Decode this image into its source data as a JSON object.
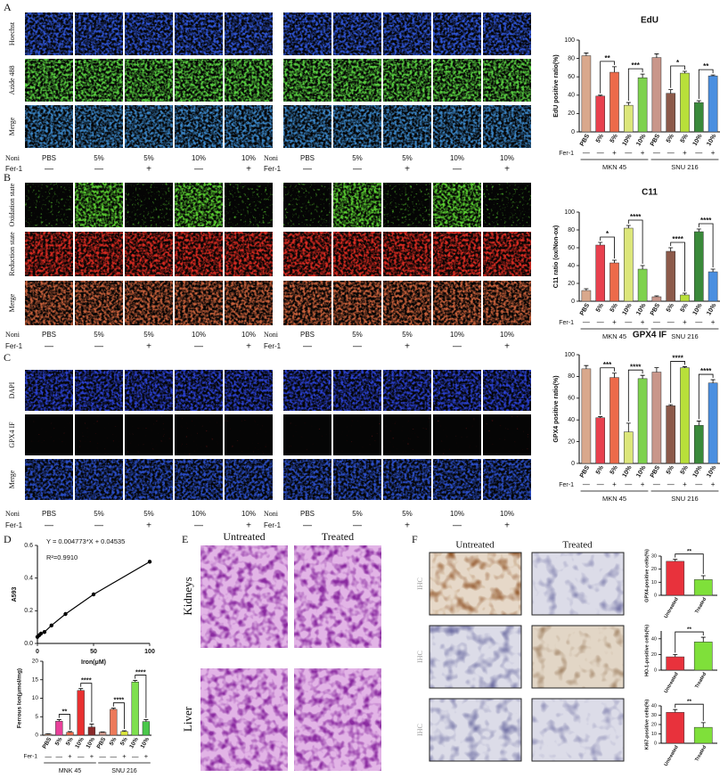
{
  "panel_letters": [
    "A",
    "B",
    "C",
    "D",
    "E",
    "F"
  ],
  "microscopy": [
    {
      "rows": [
        "Hoechst",
        "Azide 488",
        "Merge"
      ],
      "tints": [
        "#2f55d8",
        "#58d040",
        "#3a86c8"
      ],
      "conditions": [
        "Noni",
        "PBS",
        "5%",
        "5%",
        "10%",
        "10%"
      ],
      "fer1": [
        "Fer-1",
        "—",
        "—",
        "+",
        "—",
        "+"
      ]
    },
    {
      "rows": [
        "Oxidation state",
        "Reduction state",
        "Merge"
      ],
      "tints": [
        "#5ad030",
        "#d82a20",
        "#c8603a"
      ],
      "conditions": [
        "Noni",
        "PBS",
        "5%",
        "5%",
        "10%",
        "10%"
      ],
      "fer1": [
        "Fer-1",
        "—",
        "—",
        "+",
        "—",
        "+"
      ]
    },
    {
      "rows": [
        "DAPI",
        "GPX4 IF",
        "Merge"
      ],
      "tints": [
        "#2a40d0",
        "#7a1818",
        "#2a4ec8"
      ],
      "conditions": [
        "Noni",
        "PBS",
        "5%",
        "5%",
        "10%",
        "10%"
      ],
      "fer1": [
        "Fer-1",
        "—",
        "—",
        "+",
        "—",
        "+"
      ]
    }
  ],
  "histology": {
    "columns": [
      "Untreated",
      "Treated"
    ],
    "rows": [
      "Kidneys",
      "Liver"
    ]
  },
  "ihc": {
    "columns": [
      "Untreated",
      "Treated"
    ],
    "row_label": "IHC"
  },
  "chart_data": [
    {
      "type": "bar",
      "title": "EdU",
      "ylabel": "EdU positive ratio(%)",
      "categories": [
        "PBS",
        "5%",
        "5%",
        "10%",
        "10%",
        "PBS",
        "5%",
        "5%",
        "10%",
        "10%"
      ],
      "values": [
        83,
        39,
        65,
        29,
        59,
        81,
        42,
        64,
        32,
        61
      ],
      "errors": [
        3,
        1,
        6,
        3,
        4,
        4,
        4,
        2,
        2,
        1
      ],
      "colors": [
        "#d9a88c",
        "#e8404e",
        "#ec6a4a",
        "#dce67a",
        "#7ed24e",
        "#c9968a",
        "#8c5a4a",
        "#b8e03a",
        "#3a8a3a",
        "#4a8fe0"
      ],
      "ylim": [
        0,
        100
      ],
      "yticks": [
        0,
        20,
        40,
        60,
        80,
        100
      ],
      "fer1_label": "Fer-1",
      "fer1": [
        "—",
        "—",
        "+",
        "—",
        "+",
        "—",
        "—",
        "+",
        "—",
        "+"
      ],
      "groups": [
        "MKN 45",
        "SNU 216"
      ],
      "significance": [
        "**",
        "***",
        "*",
        "**"
      ]
    },
    {
      "type": "bar",
      "title": "C11",
      "ylabel": "C11 ratio (ox/Non-ox)",
      "categories": [
        "PBS",
        "5%",
        "5%",
        "10%",
        "10%",
        "PBS",
        "5%",
        "5%",
        "10%",
        "10%"
      ],
      "values": [
        12,
        63,
        43,
        82,
        36,
        5,
        56,
        7,
        78,
        33
      ],
      "errors": [
        2,
        3,
        3,
        3,
        4,
        1,
        4,
        2,
        3,
        3
      ],
      "colors": [
        "#d9a88c",
        "#e8404e",
        "#ec6a4a",
        "#dce67a",
        "#7ed24e",
        "#c9968a",
        "#8c5a4a",
        "#b8e03a",
        "#3a8a3a",
        "#4a8fe0"
      ],
      "ylim": [
        0,
        100
      ],
      "yticks": [
        0,
        20,
        40,
        60,
        80,
        100
      ],
      "fer1_label": "Fer-1",
      "fer1": [
        "—",
        "—",
        "+",
        "—",
        "+",
        "—",
        "—",
        "+",
        "—",
        "+"
      ],
      "groups": [
        "MKN 45",
        "SNU 216"
      ],
      "significance": [
        "*",
        "****",
        "****",
        "****"
      ]
    },
    {
      "type": "bar",
      "title": "GPX4 IF",
      "ylabel": "GPX4 positive ratio(%)",
      "categories": [
        "PBS",
        "5%",
        "5%",
        "10%",
        "10%",
        "PBS",
        "5%",
        "5%",
        "10%",
        "10%"
      ],
      "values": [
        87,
        42,
        79,
        29,
        78,
        84,
        53,
        88,
        35,
        74
      ],
      "errors": [
        3,
        1,
        4,
        8,
        3,
        4,
        1,
        1,
        4,
        3
      ],
      "colors": [
        "#d9a88c",
        "#e8404e",
        "#ec6a4a",
        "#dce67a",
        "#7ed24e",
        "#c9968a",
        "#8c5a4a",
        "#b8e03a",
        "#3a8a3a",
        "#4a8fe0"
      ],
      "ylim": [
        0,
        100
      ],
      "yticks": [
        0,
        20,
        40,
        60,
        80,
        100
      ],
      "fer1_label": "Fer-1",
      "fer1": [
        "—",
        "—",
        "+",
        "—",
        "+",
        "—",
        "—",
        "+",
        "—",
        "+"
      ],
      "groups": [
        "MKN 45",
        "SNU 216"
      ],
      "significance": [
        "***",
        "****",
        "****",
        "****"
      ]
    },
    {
      "type": "line",
      "ylabel": "A593",
      "xlabel": "Iron(μM)",
      "x": [
        0,
        1.5625,
        3.125,
        6.25,
        12.5,
        25,
        50,
        100
      ],
      "values": [
        0.04,
        0.05,
        0.06,
        0.07,
        0.11,
        0.18,
        0.3,
        0.5
      ],
      "color": "#000000",
      "xlim": [
        0,
        100
      ],
      "xticks": [
        0,
        50,
        100
      ],
      "ylim": [
        0,
        0.6
      ],
      "yticks": [
        {
          "value": 0,
          "label": "0.0"
        },
        {
          "value": 0.2,
          "label": "0.2"
        },
        {
          "value": 0.4,
          "label": "0.4"
        },
        {
          "value": 0.6,
          "label": "0.6"
        }
      ],
      "annotations": [
        "Y = 0.004773*X + 0.04535",
        "R²=0.9910"
      ]
    },
    {
      "type": "bar",
      "ylabel": "Ferrous Ion(μmol/mg)",
      "categories": [
        "PBS",
        "5%",
        "5%",
        "10%",
        "10%",
        "PBS",
        "5%",
        "5%",
        "10%",
        "10%"
      ],
      "values": [
        0.3,
        3.8,
        0.8,
        12.1,
        2.2,
        0.8,
        7,
        1,
        14.4,
        3.7
      ],
      "errors": [
        0.1,
        0.4,
        0.2,
        0.5,
        0.8,
        0.1,
        0.3,
        0.2,
        0.4,
        0.5
      ],
      "colors": [
        "#d9a88c",
        "#e8409a",
        "#ec6a4a",
        "#e83030",
        "#8a2a2a",
        "#c9968a",
        "#ec7a5a",
        "#dce63a",
        "#7ee04e",
        "#4ac84a"
      ],
      "ylim": [
        0,
        20
      ],
      "yticks": [
        0,
        5,
        10,
        15,
        20
      ],
      "fer1_label": "Fer-1",
      "fer1": [
        "—",
        "—",
        "+",
        "—",
        "+",
        "—",
        "—",
        "+",
        "—",
        "+"
      ],
      "groups": [
        "MNK 45",
        "SNU 216"
      ],
      "significance": [
        "**",
        "****",
        "****",
        "****"
      ]
    },
    {
      "type": "bar",
      "ylabel": "GPX4-positive cells(%)",
      "categories": [
        "Untreated",
        "Treated"
      ],
      "values": [
        26,
        12
      ],
      "errors": [
        1.5,
        3
      ],
      "colors": [
        "#e8323c",
        "#7fe03a"
      ],
      "ylim": [
        0,
        30
      ],
      "yticks": [
        0,
        10,
        20,
        30
      ],
      "significance": [
        "**"
      ]
    },
    {
      "type": "bar",
      "ylabel": "HO-1-positive cells(%)",
      "categories": [
        "Untreated",
        "Treated"
      ],
      "values": [
        17,
        36
      ],
      "errors": [
        3,
        6
      ],
      "colors": [
        "#e8323c",
        "#7fe03a"
      ],
      "ylim": [
        0,
        50
      ],
      "yticks": [
        0,
        20,
        40
      ],
      "significance": [
        "**"
      ]
    },
    {
      "type": "bar",
      "ylabel": "Ki67-positive cells(%)",
      "categories": [
        "Untreated",
        "Treated"
      ],
      "values": [
        33,
        17
      ],
      "errors": [
        3,
        5
      ],
      "colors": [
        "#e8323c",
        "#7fe03a"
      ],
      "ylim": [
        0,
        40
      ],
      "yticks": [
        0,
        10,
        20,
        30,
        40
      ],
      "significance": [
        "**"
      ]
    }
  ]
}
